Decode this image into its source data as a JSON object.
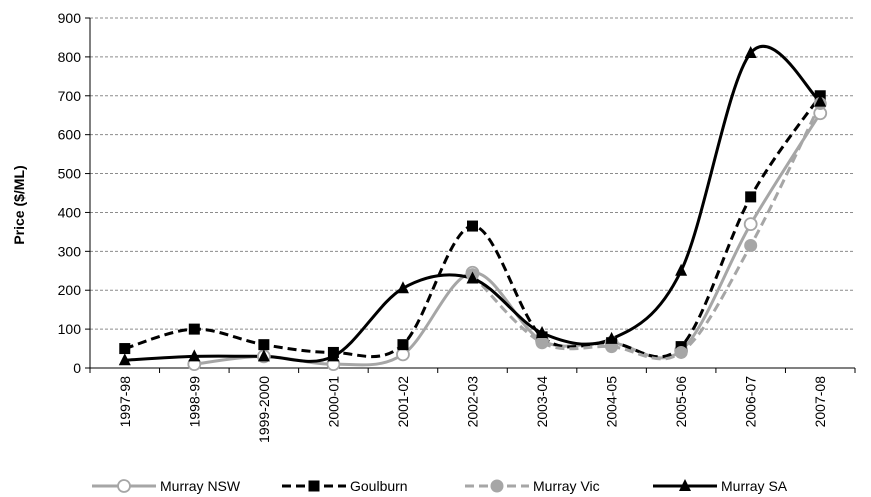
{
  "chart_data": {
    "type": "line",
    "title": "",
    "xlabel": "",
    "ylabel": "Price ($/ML)",
    "ylim": [
      0,
      900
    ],
    "yticks": [
      0,
      100,
      200,
      300,
      400,
      500,
      600,
      700,
      800,
      900
    ],
    "grid": "horizontal-dashed",
    "legend_position": "bottom",
    "categories": [
      "1997-98",
      "1998-99",
      "1999-2000",
      "2000-01",
      "2001-02",
      "2002-03",
      "2003-04",
      "2004-05",
      "2005-06",
      "2006-07",
      "2007-08"
    ],
    "series": [
      {
        "name": "Murray NSW",
        "color": "#a6a6a6",
        "dash": "solid",
        "marker": "circle-open",
        "values": [
          null,
          10,
          30,
          10,
          35,
          245,
          70,
          65,
          45,
          370,
          655
        ]
      },
      {
        "name": "Goulburn",
        "color": "#000000",
        "dash": "dashed",
        "marker": "square",
        "values": [
          50,
          100,
          60,
          40,
          60,
          365,
          80,
          65,
          55,
          440,
          700
        ]
      },
      {
        "name": "Murray Vic",
        "color": "#a6a6a6",
        "dash": "dashed",
        "marker": "circle",
        "values": [
          null,
          null,
          null,
          null,
          null,
          240,
          65,
          55,
          40,
          315,
          680
        ]
      },
      {
        "name": "Murray SA",
        "color": "#000000",
        "dash": "solid",
        "marker": "triangle",
        "values": [
          20,
          30,
          30,
          30,
          205,
          230,
          90,
          75,
          250,
          810,
          685
        ]
      }
    ]
  }
}
